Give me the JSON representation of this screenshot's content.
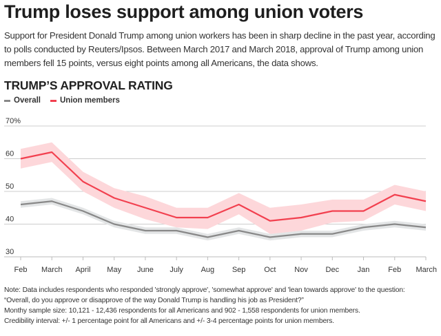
{
  "header": {
    "title": "Trump loses support among union voters",
    "subtitle": "Support for President Donald Trump among union workers has been in sharp decline in the past year, according to polls conducted by Reuters/Ipsos. Between March 2017 and March 2018, approval of Trump among union members fell 15 points, versus eight points among all Americans, the data shows."
  },
  "chart_title": "TRUMP’S APPROVAL RATING",
  "legend": [
    {
      "label": "Overall",
      "color": "#888888"
    },
    {
      "label": "Union members",
      "color": "#f2404f"
    }
  ],
  "colors": {
    "union_line": "#f2404f",
    "union_band": "#fdd7da",
    "overall_line": "#888888",
    "overall_band": "#e3e5e6",
    "grid": "#cccccc"
  },
  "chart_data": {
    "type": "line",
    "title": "TRUMP’S APPROVAL RATING",
    "xlabel": "",
    "ylabel": "",
    "ylim": [
      30,
      70
    ],
    "yticks": [
      30,
      40,
      50,
      60,
      70
    ],
    "ytick_labels": [
      "30",
      "40",
      "50",
      "60",
      "70%"
    ],
    "grid": true,
    "legend_position": "top-left",
    "categories": [
      "Feb",
      "March",
      "April",
      "May",
      "June",
      "July",
      "Aug",
      "Sep",
      "Oct",
      "Nov",
      "Dec",
      "Jan",
      "Feb",
      "March"
    ],
    "series": [
      {
        "name": "Overall",
        "values": [
          46,
          47,
          44,
          40,
          38,
          38,
          36,
          38,
          36,
          37,
          37,
          39,
          40,
          39
        ],
        "interval": 1
      },
      {
        "name": "Union members",
        "values": [
          60,
          62,
          53,
          48,
          45,
          42,
          42,
          46,
          41,
          42,
          44,
          44,
          49,
          47
        ],
        "lower": [
          57,
          59,
          50,
          45,
          41.5,
          39,
          38.5,
          43,
          37,
          38,
          40.5,
          41,
          46,
          44
        ],
        "upper": [
          63,
          65,
          56,
          51,
          48.5,
          45,
          45,
          49.5,
          45,
          46,
          47.5,
          47.5,
          52,
          50
        ]
      }
    ]
  },
  "notes": [
    "Note: Data includes respondents who responded 'strongly approve', 'somewhat approve' and 'lean towards approve' to the question:",
    "“Overall, do you approve or disapprove of the way Donald Trump is handling his job as President?”",
    "Monthy sample size: 10,121 - 12,436 respondents for all Americans and 902 - 1,558 respondents for union members.",
    "Credibility interval: +/- 1 percentage point for all Americans and +/- 3-4 percentage points for union members."
  ]
}
